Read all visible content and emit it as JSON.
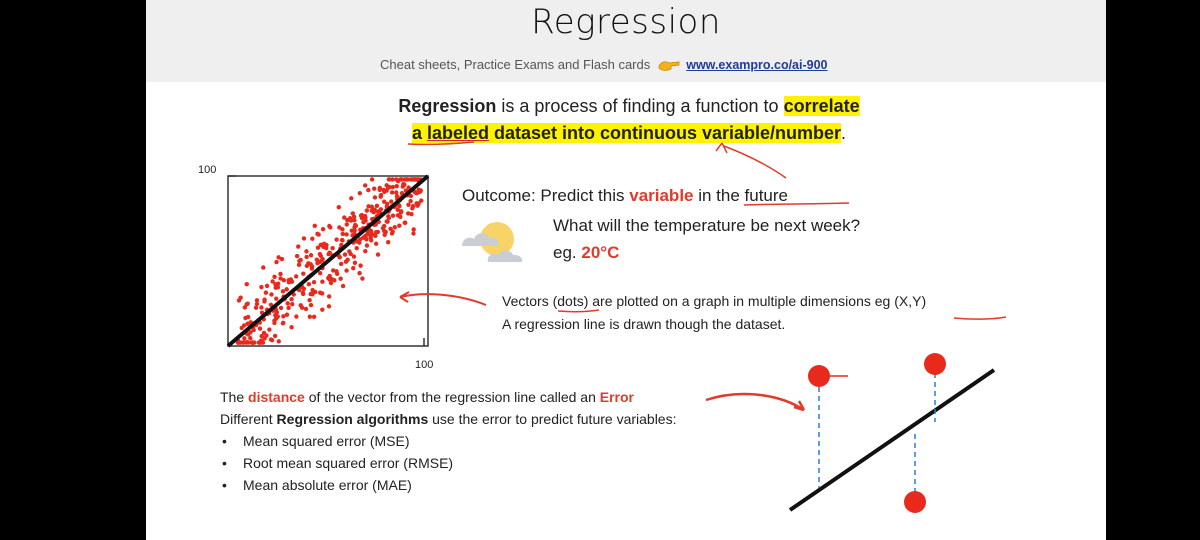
{
  "slide": {
    "title": "Regression",
    "subtitle_text": "Cheat sheets, Practice Exams and Flash cards",
    "subtitle_link": "www.exampro.co/ai-900"
  },
  "definition": {
    "term": "Regression",
    "part1": " is a process of finding a function to ",
    "correlate": "correlate",
    "line2_a": "a ",
    "labeled": "labeled",
    "line2_b": " dataset into continuous variable/number",
    "period": "."
  },
  "outcome": {
    "prefix": "Outcome: Predict this ",
    "variable": "variable",
    "suffix": " in the future",
    "question": "What will the temperature be next week?",
    "eg_prefix": "eg. ",
    "eg_value": "20°C"
  },
  "vectors": {
    "line1": "Vectors (dots) are plotted on a graph in multiple dimensions eg (X,Y)",
    "line2": "A regression line is drawn though the dataset."
  },
  "errors": {
    "line1_prefix": "The ",
    "distance": "distance",
    "line1_mid": " of the vector from the regression line called an ",
    "error_word": "Error",
    "line2_prefix": "Different ",
    "algorithms": "Regression algorithms",
    "line2_suffix": " use the error to predict future variables:",
    "items": [
      "Mean squared error (MSE)",
      "Root mean squared error (RMSE)",
      "Mean absolute error (MAE)"
    ],
    "bullet": "•"
  },
  "chart_data": {
    "type": "scatter",
    "xlim": [
      0,
      100
    ],
    "ylim": [
      0,
      100
    ],
    "xticks": [
      "100"
    ],
    "yticks": [
      "100"
    ],
    "regression_line": [
      [
        0,
        0
      ],
      [
        100,
        100
      ]
    ],
    "grid": false,
    "point_color": "#e8291c"
  },
  "colors": {
    "accent_red": "#e13b2b",
    "highlight": "#fff200",
    "link": "#1f3b9c"
  },
  "icons": [
    "pointing-hand-icon",
    "partly-cloudy-icon"
  ]
}
